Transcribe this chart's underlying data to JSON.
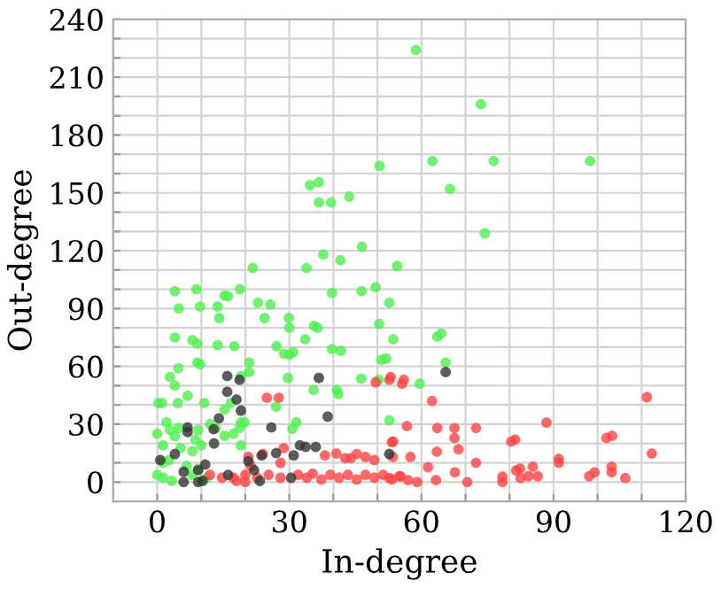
{
  "chart_data": {
    "type": "scatter",
    "xlabel": "In-degree",
    "ylabel": "Out-degree",
    "xlim": [
      -10,
      120
    ],
    "ylim": [
      -10,
      240
    ],
    "xticks": [
      0,
      {
        "value": 10,
        "label": null
      },
      {
        "value": 20,
        "label": null
      },
      30,
      {
        "value": 40,
        "label": null
      },
      {
        "value": 50,
        "label": null
      },
      60,
      {
        "value": 70,
        "label": null
      },
      {
        "value": 80,
        "label": null
      },
      90,
      {
        "value": 100,
        "label": null
      },
      {
        "value": 110,
        "label": null
      },
      120
    ],
    "yticks": [
      0,
      {
        "value": 10,
        "label": null
      },
      {
        "value": 20,
        "label": null
      },
      30,
      {
        "value": 40,
        "label": null
      },
      {
        "value": 50,
        "label": null
      },
      60,
      {
        "value": 70,
        "label": null
      },
      {
        "value": 80,
        "label": null
      },
      90,
      {
        "value": 100,
        "label": null
      },
      {
        "value": 110,
        "label": null
      },
      120,
      {
        "value": 130,
        "label": null
      },
      {
        "value": 140,
        "label": null
      },
      150,
      {
        "value": 160,
        "label": null
      },
      {
        "value": 170,
        "label": null
      },
      180,
      {
        "value": 190,
        "label": null
      },
      {
        "value": 200,
        "label": null
      },
      210,
      {
        "value": 220,
        "label": null
      },
      {
        "value": 230,
        "label": null
      },
      240
    ],
    "grid": true,
    "marker": "circle",
    "legend": false,
    "series": [
      {
        "color": "#4ef04e",
        "x": [
          58.7,
          73.5,
          50.5,
          62.5,
          76.4,
          98.3,
          34.7,
          36.7,
          66.5,
          36.7,
          39.5,
          43.6,
          74.4,
          37.7,
          41.6,
          46.5,
          54.5,
          52.7,
          53.6,
          63.6,
          64.5,
          65.5,
          59.6,
          52,
          52.7,
          21.7,
          33.9,
          4,
          8.9,
          15.3,
          16.1,
          18.8,
          39.7,
          46.4,
          49.6,
          4.9,
          9.7,
          13.7,
          22.9,
          25.7,
          29.9,
          14.1,
          24.4,
          30,
          35.6,
          36.4,
          50.4,
          4,
          8,
          9.1,
          9.1,
          9.7,
          13.7,
          17.5,
          27.1,
          28.8,
          30,
          30.9,
          33.6,
          39.7,
          41.7,
          20.9,
          4.8,
          2.9,
          4,
          19,
          29.7,
          50.9,
          50.3,
          46.3,
          20.9,
          35.5,
          40.8,
          41.1,
          0.3,
          1.1,
          4.7,
          6.9,
          10.7,
          16.7,
          15.3,
          27,
          19,
          19.8,
          31.6,
          30.7,
          0,
          2.1,
          2.9,
          4.9,
          4,
          9.3,
          8.7,
          12,
          13.3,
          15.3,
          17.3,
          1.3,
          5.3,
          8,
          10,
          1.3,
          2.7,
          6.7,
          9.3,
          0,
          1.3,
          3.3,
          8,
          11.3,
          18.7,
          19
        ],
        "values": [
          224,
          196,
          164,
          166.5,
          166.5,
          166.5,
          154,
          155.5,
          152,
          145,
          145,
          148,
          129,
          118,
          115,
          122,
          112,
          93,
          74,
          75.4,
          77,
          62,
          51,
          64,
          32,
          111,
          111,
          99,
          100,
          96.7,
          96.4,
          100,
          98,
          99,
          101,
          90,
          91,
          91,
          93,
          92,
          85,
          85,
          85,
          80,
          81,
          80,
          82,
          75,
          73.6,
          71.7,
          62,
          61,
          71,
          70.5,
          70.5,
          66.5,
          66,
          67.4,
          74,
          69,
          68,
          62,
          59,
          54.5,
          50,
          55,
          54,
          63.4,
          53,
          53.6,
          57,
          47.7,
          47.7,
          45.6,
          41,
          41,
          41,
          44.7,
          41,
          41,
          37.6,
          39,
          31,
          31,
          31,
          27.7,
          25,
          31,
          27,
          28,
          23.7,
          27,
          22,
          30,
          28,
          24,
          25,
          19,
          17.6,
          16,
          19,
          10,
          11.4,
          8.3,
          6.8,
          3.7,
          2.2,
          0.6,
          3.7,
          2.2,
          28,
          19
        ]
      },
      {
        "color": "#ff4444",
        "x": [
          52.7,
          55.6,
          62.4,
          111.2,
          56.7,
          63.6,
          67.5,
          72.4,
          67.5,
          68.4,
          53.6,
          63.5,
          88.4,
          80.4,
          81.3,
          102,
          103.3,
          112.3,
          57.5,
          72.4,
          91.2,
          91.2,
          61.5,
          67.6,
          63.3,
          70.4,
          78.4,
          78.4,
          81.5,
          82.4,
          82.5,
          85.3,
          84.3,
          86.4,
          98.1,
          99.3,
          103.2,
          103.2,
          106.3,
          52.7,
          55,
          57,
          59,
          53.5,
          24.9,
          27.6,
          53,
          56,
          49.6,
          20.7,
          24,
          28.7,
          38.1,
          40.7,
          42.7,
          45.3,
          47.3,
          53.3,
          49.3,
          12,
          14.7,
          17.3,
          20,
          22.7,
          25.3,
          28,
          28,
          32,
          34,
          35.3,
          37.3,
          39.3,
          41.3,
          43.3,
          45.3,
          47.3,
          49.3,
          51.3,
          53.3,
          55.3,
          21.3,
          44,
          18,
          20
        ],
        "values": [
          53,
          51,
          42,
          44,
          29,
          28,
          28,
          28,
          22.8,
          17,
          21,
          15.7,
          30.8,
          21,
          22,
          22.8,
          24,
          14.8,
          13,
          10,
          12,
          10,
          7.7,
          5,
          1,
          0,
          2.8,
          0,
          6,
          7,
          2,
          8,
          3,
          3,
          3,
          5,
          8,
          5,
          2,
          2,
          3,
          1,
          0,
          13,
          43.7,
          43.7,
          54.5,
          53,
          51.7,
          13,
          14.5,
          17.5,
          13.8,
          14.8,
          12.4,
          14.5,
          13,
          20.7,
          11.4,
          3.7,
          2.2,
          2.2,
          3.7,
          2.2,
          3.7,
          2.2,
          9.9,
          3.7,
          2.2,
          4.3,
          1.3,
          3.7,
          2.2,
          3.7,
          1.3,
          3.7,
          2.2,
          3.7,
          1.3,
          2.8,
          8.3,
          12.4,
          0.6,
          0
        ]
      },
      {
        "color": "#333333",
        "x": [
          65.5,
          15.9,
          18.7,
          15.9,
          18,
          19,
          14,
          25.9,
          36.7,
          38.7,
          6.9,
          6.9,
          4,
          0.7,
          10.9,
          9.3,
          6,
          6,
          12.8,
          12.9,
          16.1,
          20.7,
          23.7,
          27,
          30.4,
          32.4,
          33.7,
          31,
          36,
          52.7,
          9.3,
          22,
          23.3,
          10.3
        ],
        "values": [
          57,
          55,
          53,
          46.8,
          42.8,
          37,
          33,
          28.3,
          54,
          33.9,
          28.3,
          25.9,
          14.5,
          11.4,
          9,
          6.2,
          5.3,
          0,
          27.4,
          20,
          3.7,
          10.8,
          13.8,
          15,
          2.2,
          19,
          18.2,
          13.8,
          18.2,
          14.5,
          0,
          6.2,
          0.6,
          0.6
        ]
      }
    ]
  }
}
